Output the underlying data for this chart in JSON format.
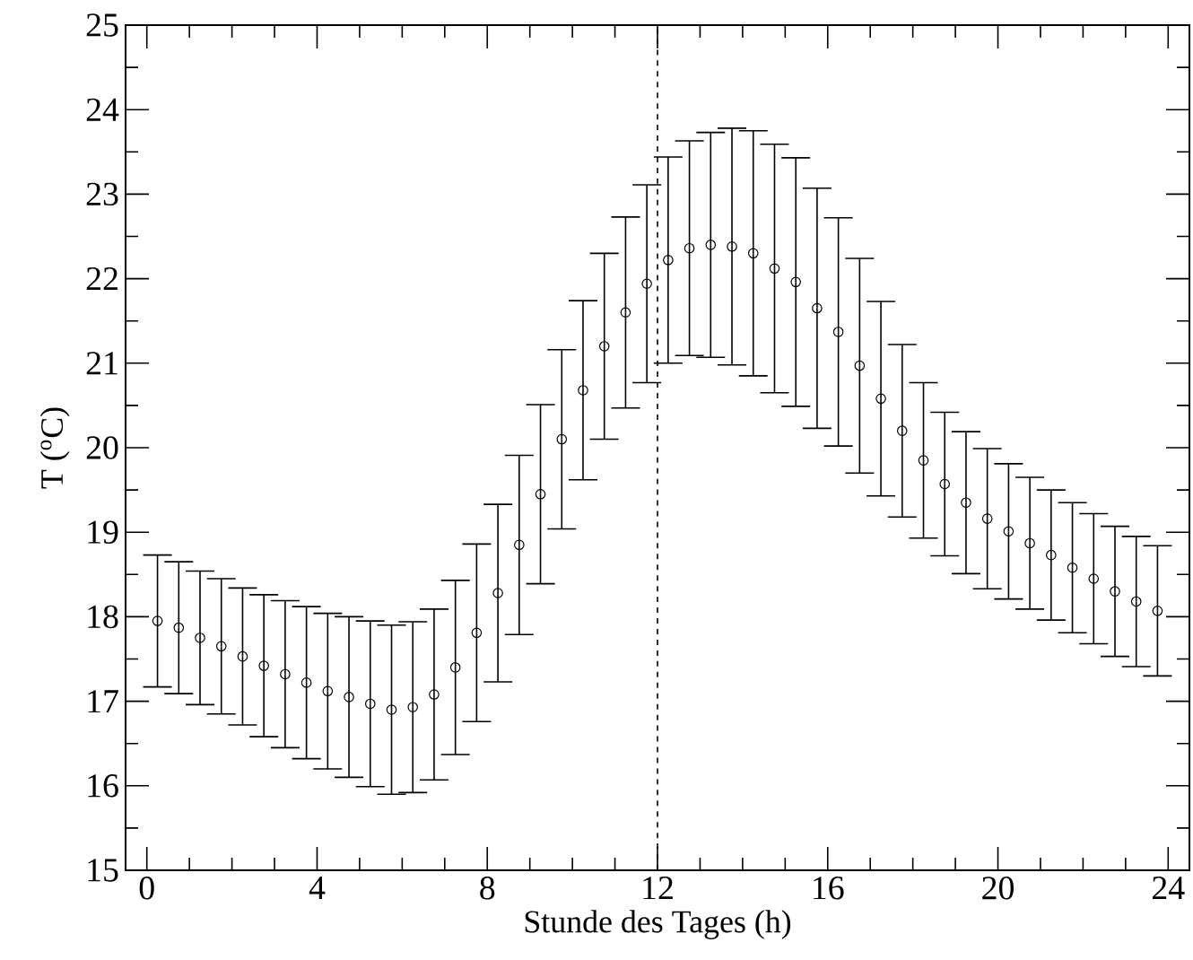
{
  "chart_data": {
    "type": "scatter",
    "xlabel": "Stunde des Tages (h)",
    "ylabel": "T ($^{o}$C)",
    "x": [
      0.25,
      0.75,
      1.25,
      1.75,
      2.25,
      2.75,
      3.25,
      3.75,
      4.25,
      4.75,
      5.25,
      5.75,
      6.25,
      6.75,
      7.25,
      7.75,
      8.25,
      8.75,
      9.25,
      9.75,
      10.25,
      10.75,
      11.25,
      11.75,
      12.25,
      12.75,
      13.25,
      13.75,
      14.25,
      14.75,
      15.25,
      15.75,
      16.25,
      16.75,
      17.25,
      17.75,
      18.25,
      18.75,
      19.25,
      19.75,
      20.25,
      20.75,
      21.25,
      21.75,
      22.25,
      22.75,
      23.25,
      23.75
    ],
    "series": [
      {
        "color": "#000000",
        "values": [
          17.95,
          17.87,
          17.75,
          17.65,
          17.53,
          17.42,
          17.32,
          17.22,
          17.12,
          17.05,
          16.97,
          16.9,
          16.93,
          17.08,
          17.4,
          17.81,
          18.28,
          18.85,
          19.45,
          20.1,
          20.68,
          21.2,
          21.6,
          21.94,
          22.22,
          22.36,
          22.4,
          22.38,
          22.3,
          22.12,
          21.96,
          21.65,
          21.37,
          20.97,
          20.58,
          20.2,
          19.85,
          19.57,
          19.35,
          19.16,
          19.01,
          18.87,
          18.73,
          18.58,
          18.45,
          18.3,
          18.18,
          18.07
        ],
        "errors": [
          0.78,
          0.78,
          0.79,
          0.8,
          0.81,
          0.84,
          0.87,
          0.9,
          0.92,
          0.95,
          0.98,
          1.0,
          1.01,
          1.01,
          1.03,
          1.05,
          1.05,
          1.06,
          1.06,
          1.06,
          1.06,
          1.1,
          1.13,
          1.17,
          1.22,
          1.27,
          1.33,
          1.4,
          1.45,
          1.47,
          1.47,
          1.42,
          1.35,
          1.27,
          1.15,
          1.02,
          0.92,
          0.85,
          0.84,
          0.83,
          0.8,
          0.78,
          0.77,
          0.77,
          0.77,
          0.77,
          0.77,
          0.77
        ]
      }
    ],
    "marker": "circle",
    "xlim": [
      -0.5,
      24.5
    ],
    "ylim": [
      15,
      25
    ],
    "xticks": [
      0,
      4,
      8,
      12,
      16,
      20,
      24
    ],
    "yticks": [
      15,
      16,
      17,
      18,
      19,
      20,
      21,
      22,
      23,
      24,
      25
    ],
    "ref_lines": [
      {
        "axis": "x",
        "value": 12,
        "color": "#000000",
        "line_style": "dashed"
      }
    ]
  }
}
